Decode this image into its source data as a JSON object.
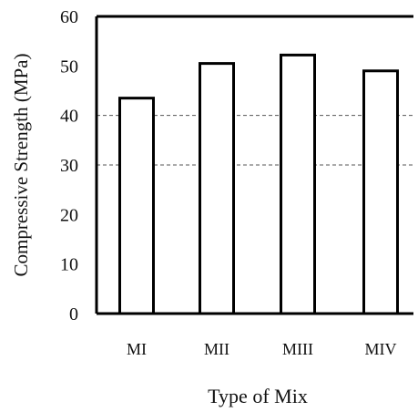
{
  "chart_data": {
    "type": "bar",
    "categories": [
      "MI",
      "MII",
      "MIII",
      "MIV"
    ],
    "values": [
      43.5,
      50.5,
      52.2,
      49.0
    ],
    "title": "",
    "xlabel": "Type of Mix",
    "ylabel": "Compressive Strength (MPa)",
    "ylim": [
      0,
      60
    ],
    "yticks": [
      0,
      10,
      20,
      30,
      40,
      50,
      60
    ],
    "grid": {
      "dashed_reference_lines": [
        30,
        40
      ]
    },
    "legend": "none",
    "colors": {
      "bar_fill": "#ffffff",
      "bar_stroke": "#000000",
      "axis": "#000000",
      "gridline": "#555555"
    }
  }
}
